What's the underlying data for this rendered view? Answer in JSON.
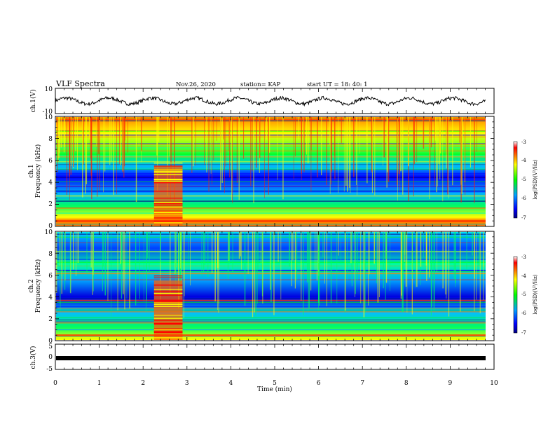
{
  "header": {
    "title": "VLF Spectra",
    "date": "Nov.26, 2020",
    "station": "station= KAP",
    "start": "start  UT =   18: 40: 1"
  },
  "chart_data": [
    {
      "type": "line",
      "title": "",
      "ylabel": "ch.1(V)",
      "xlim": [
        0,
        10
      ],
      "ylim": [
        -10,
        10
      ],
      "yticks": [
        "10",
        "-10"
      ],
      "grid": false,
      "legend": "none",
      "description_of_series": "waveform oscillating roughly between -5 and 5 V"
    },
    {
      "type": "heatmap",
      "title": "",
      "ylabel_line1": "ch.1",
      "ylabel_line2": "Frequency (kHz)",
      "xlim": [
        0,
        10
      ],
      "ylim": [
        0,
        10
      ],
      "yticks": [
        "0",
        "2",
        "4",
        "6",
        "8",
        "10"
      ],
      "colorbar": {
        "label": "log(PSD)(V²/Hz)",
        "range": [
          -7,
          -3
        ],
        "ticks": [
          "-3",
          "-4",
          "-5",
          "-6",
          "-7"
        ]
      }
    },
    {
      "type": "heatmap",
      "title": "",
      "ylabel_line1": "ch.2",
      "ylabel_line2": "Frequency (kHz)",
      "xlim": [
        0,
        10
      ],
      "ylim": [
        0,
        10
      ],
      "yticks": [
        "0",
        "2",
        "4",
        "6",
        "8",
        "10"
      ],
      "colorbar": {
        "label": "log(PSD)(V²/Hz)",
        "range": [
          -7,
          -3
        ],
        "ticks": [
          "-3",
          "-4",
          "-5",
          "-6",
          "-7"
        ]
      }
    },
    {
      "type": "line",
      "title": "",
      "ylabel": "ch.3(V)",
      "xlim": [
        0,
        10
      ],
      "ylim": [
        -5,
        5
      ],
      "yticks": [
        "5",
        "0",
        "-5"
      ],
      "xticks": [
        "0",
        "1",
        "2",
        "3",
        "4",
        "5",
        "6",
        "7",
        "8",
        "9",
        "10"
      ],
      "xlabel": "Time (min)"
    }
  ],
  "colors": {
    "palette": [
      "#000080",
      "#0000ff",
      "#00a0ff",
      "#00ffb0",
      "#00ff00",
      "#ffff00",
      "#ff8000",
      "#ff0000"
    ],
    "trace": "#000000"
  }
}
